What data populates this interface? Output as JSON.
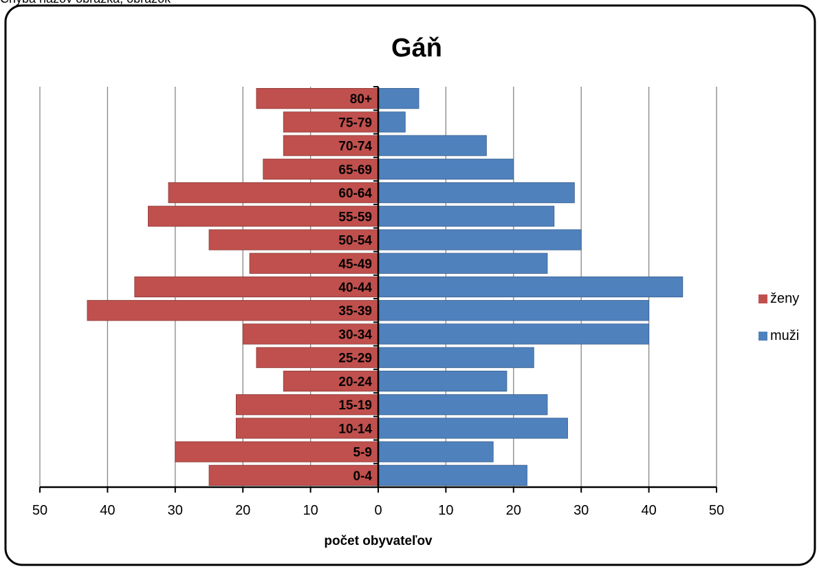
{
  "page": {
    "caption": "Chýba názov obrázka, obrázok"
  },
  "chart_data": {
    "type": "bar",
    "orientation": "horizontal",
    "title": "Gáň",
    "xlabel": "počet obyvateľov",
    "ylabel": "",
    "categories": [
      "0-4",
      "5-9",
      "10-14",
      "15-19",
      "20-24",
      "25-29",
      "30-34",
      "35-39",
      "40-44",
      "45-49",
      "50-54",
      "55-59",
      "60-64",
      "65-69",
      "70-74",
      "75-79",
      "80+"
    ],
    "series": [
      {
        "name": "ženy",
        "color": "#c0504d",
        "side": "left",
        "values": [
          25,
          30,
          21,
          21,
          14,
          18,
          20,
          43,
          36,
          19,
          25,
          34,
          31,
          17,
          14,
          14,
          18
        ]
      },
      {
        "name": "muži",
        "color": "#4f81bd",
        "side": "right",
        "values": [
          22,
          17,
          28,
          25,
          19,
          23,
          40,
          40,
          45,
          25,
          30,
          26,
          29,
          20,
          16,
          4,
          6
        ]
      }
    ],
    "xlim": [
      -50,
      50
    ],
    "xticks": [
      -50,
      -40,
      -30,
      -20,
      -10,
      0,
      10,
      20,
      30,
      40,
      50
    ],
    "xtick_labels": [
      "50",
      "40",
      "30",
      "20",
      "10",
      "0",
      "10",
      "20",
      "30",
      "40",
      "50"
    ],
    "grid": true,
    "legend_position": "right"
  }
}
